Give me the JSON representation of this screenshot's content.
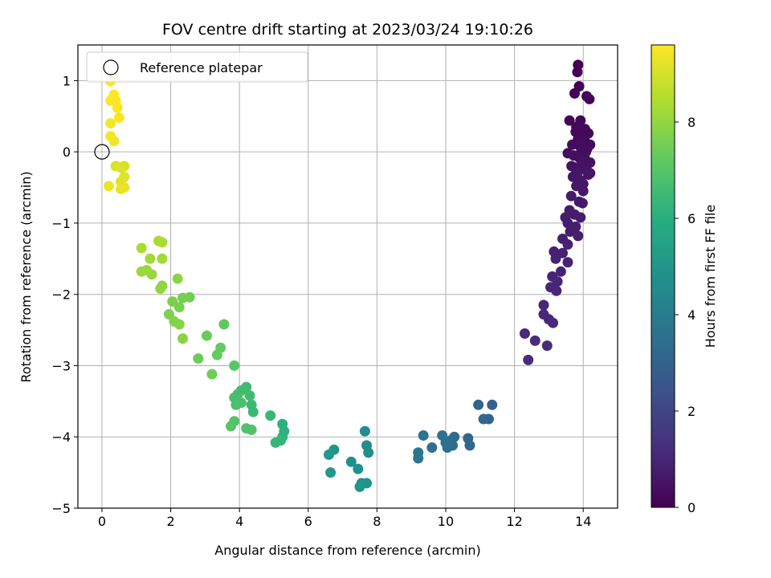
{
  "chart_data": {
    "type": "scatter",
    "title": "FOV centre drift starting at 2023/03/24 19:10:26",
    "xlabel": "Angular distance from reference (arcmin)",
    "ylabel": "Rotation from reference (arcmin)",
    "xlim": [
      -0.7,
      15.0
    ],
    "ylim": [
      -5.0,
      1.5
    ],
    "xticks": [
      0,
      2,
      4,
      6,
      8,
      10,
      12,
      14
    ],
    "yticks": [
      -5,
      -4,
      -3,
      -2,
      -1,
      0,
      1
    ],
    "xtick_labels": [
      "0",
      "2",
      "4",
      "6",
      "8",
      "10",
      "12",
      "14"
    ],
    "ytick_labels": [
      "−5",
      "−4",
      "−3",
      "−2",
      "−1",
      "0",
      "1"
    ],
    "grid": true,
    "legend": {
      "placement": "upper-left",
      "entries": [
        "Reference platepar"
      ]
    },
    "reference_point": {
      "x": 0,
      "y": 0
    },
    "colorbar": {
      "label": "Hours from first FF file",
      "range": [
        0,
        9.6
      ],
      "ticks": [
        0,
        2,
        4,
        6,
        8
      ],
      "tick_labels": [
        "0",
        "2",
        "4",
        "6",
        "8"
      ],
      "colormap": "viridis"
    },
    "points": [
      [
        13.85,
        1.22,
        0.02
      ],
      [
        13.83,
        1.12,
        0.04
      ],
      [
        13.88,
        0.92,
        0.06
      ],
      [
        13.75,
        0.82,
        0.08
      ],
      [
        14.1,
        0.78,
        0.1
      ],
      [
        14.18,
        0.74,
        0.12
      ],
      [
        13.6,
        0.44,
        0.14
      ],
      [
        13.92,
        0.44,
        0.16
      ],
      [
        13.8,
        0.35,
        0.18
      ],
      [
        14.05,
        0.32,
        0.2
      ],
      [
        14.15,
        0.26,
        0.22
      ],
      [
        13.95,
        0.22,
        0.24
      ],
      [
        13.85,
        0.18,
        0.26
      ],
      [
        14.05,
        0.15,
        0.28
      ],
      [
        14.2,
        0.1,
        0.3
      ],
      [
        13.9,
        0.08,
        0.32
      ],
      [
        14.12,
        0.05,
        0.34
      ],
      [
        13.95,
        0.02,
        0.36
      ],
      [
        13.55,
        -0.02,
        0.38
      ],
      [
        13.72,
        -0.05,
        0.4
      ],
      [
        13.88,
        -0.08,
        0.42
      ],
      [
        14.05,
        -0.1,
        0.44
      ],
      [
        14.2,
        -0.15,
        0.46
      ],
      [
        13.95,
        -0.18,
        0.48
      ],
      [
        13.75,
        -0.22,
        0.5
      ],
      [
        14.1,
        -0.25,
        0.52
      ],
      [
        13.85,
        -0.28,
        0.54
      ],
      [
        14.15,
        -0.32,
        0.56
      ],
      [
        13.7,
        -0.35,
        0.58
      ],
      [
        13.92,
        -0.4,
        0.6
      ],
      [
        13.8,
        -0.48,
        0.62
      ],
      [
        14.0,
        -0.55,
        0.64
      ],
      [
        13.65,
        -0.62,
        0.66
      ],
      [
        13.88,
        -0.7,
        0.68
      ],
      [
        13.6,
        -0.82,
        0.7
      ],
      [
        13.75,
        -0.88,
        0.72
      ],
      [
        13.92,
        -0.92,
        0.74
      ],
      [
        13.55,
        -1.0,
        0.76
      ],
      [
        13.78,
        -1.05,
        0.78
      ],
      [
        13.62,
        -1.12,
        0.8
      ],
      [
        13.85,
        -1.18,
        0.82
      ],
      [
        13.4,
        -1.22,
        0.84
      ],
      [
        13.55,
        -1.3,
        0.86
      ],
      [
        13.15,
        -1.4,
        0.88
      ],
      [
        13.4,
        -1.42,
        0.9
      ],
      [
        13.2,
        -1.5,
        0.92
      ],
      [
        13.55,
        -1.55,
        0.94
      ],
      [
        13.35,
        -1.68,
        0.96
      ],
      [
        13.1,
        -1.75,
        0.98
      ],
      [
        13.25,
        -1.82,
        1.0
      ],
      [
        13.05,
        -1.9,
        1.02
      ],
      [
        13.22,
        -1.95,
        1.04
      ],
      [
        12.85,
        -2.15,
        1.06
      ],
      [
        12.85,
        -2.28,
        1.08
      ],
      [
        13.0,
        -2.35,
        1.1
      ],
      [
        13.12,
        -2.4,
        1.12
      ],
      [
        12.3,
        -2.55,
        1.14
      ],
      [
        12.6,
        -2.65,
        1.16
      ],
      [
        12.95,
        -2.72,
        1.18
      ],
      [
        12.4,
        -2.92,
        1.2
      ],
      [
        13.95,
        0.3,
        0.22
      ],
      [
        14.08,
        0.0,
        0.36
      ],
      [
        14.2,
        -0.3,
        0.54
      ],
      [
        13.68,
        0.1,
        0.3
      ],
      [
        13.78,
        0.28,
        0.2
      ],
      [
        14.0,
        -0.45,
        0.6
      ],
      [
        13.48,
        -0.92,
        0.74
      ],
      [
        13.66,
        -0.2,
        0.46
      ],
      [
        13.98,
        -0.72,
        0.68
      ],
      [
        11.35,
        -3.55,
        3.0
      ],
      [
        10.95,
        -3.55,
        3.05
      ],
      [
        11.25,
        -3.75,
        3.1
      ],
      [
        11.1,
        -3.75,
        3.15
      ],
      [
        10.65,
        -4.02,
        3.2
      ],
      [
        10.7,
        -4.12,
        3.25
      ],
      [
        10.25,
        -4.0,
        3.3
      ],
      [
        10.15,
        -4.05,
        3.35
      ],
      [
        10.2,
        -4.12,
        3.4
      ],
      [
        10.0,
        -4.08,
        3.45
      ],
      [
        10.05,
        -4.15,
        3.5
      ],
      [
        9.9,
        -3.98,
        3.55
      ],
      [
        9.6,
        -4.15,
        3.6
      ],
      [
        9.35,
        -3.98,
        3.65
      ],
      [
        9.2,
        -4.22,
        3.7
      ],
      [
        9.2,
        -4.3,
        3.75
      ],
      [
        7.65,
        -3.92,
        4.6
      ],
      [
        7.7,
        -4.12,
        4.65
      ],
      [
        7.75,
        -4.22,
        4.7
      ],
      [
        7.45,
        -4.45,
        4.75
      ],
      [
        7.25,
        -4.35,
        4.8
      ],
      [
        7.55,
        -4.65,
        4.85
      ],
      [
        7.7,
        -4.65,
        4.9
      ],
      [
        7.5,
        -4.7,
        4.95
      ],
      [
        6.75,
        -4.18,
        5.0
      ],
      [
        6.6,
        -4.25,
        5.05
      ],
      [
        6.65,
        -4.5,
        5.1
      ],
      [
        5.25,
        -3.82,
        6.1
      ],
      [
        5.3,
        -3.92,
        6.15
      ],
      [
        5.25,
        -4.0,
        6.2
      ],
      [
        5.2,
        -4.05,
        6.25
      ],
      [
        5.05,
        -4.08,
        6.3
      ],
      [
        4.9,
        -3.7,
        6.35
      ],
      [
        4.35,
        -3.55,
        6.4
      ],
      [
        4.4,
        -3.65,
        6.45
      ],
      [
        4.2,
        -3.3,
        6.5
      ],
      [
        4.3,
        -3.42,
        6.55
      ],
      [
        4.05,
        -3.35,
        6.6
      ],
      [
        3.95,
        -3.4,
        6.65
      ],
      [
        3.85,
        -3.45,
        6.7
      ],
      [
        4.05,
        -3.52,
        6.75
      ],
      [
        3.9,
        -3.55,
        6.8
      ],
      [
        4.2,
        -3.88,
        6.85
      ],
      [
        4.35,
        -3.9,
        6.9
      ],
      [
        3.85,
        -3.78,
        6.95
      ],
      [
        3.75,
        -3.85,
        7.0
      ],
      [
        3.85,
        -3.0,
        7.05
      ],
      [
        3.55,
        -2.42,
        7.2
      ],
      [
        3.45,
        -2.75,
        7.25
      ],
      [
        3.35,
        -2.85,
        7.3
      ],
      [
        3.05,
        -2.58,
        7.35
      ],
      [
        2.8,
        -2.9,
        7.4
      ],
      [
        3.2,
        -3.12,
        7.45
      ],
      [
        2.55,
        -2.04,
        7.5
      ],
      [
        2.35,
        -2.05,
        7.55
      ],
      [
        2.25,
        -2.18,
        7.6
      ],
      [
        2.05,
        -2.1,
        7.65
      ],
      [
        1.95,
        -2.28,
        7.7
      ],
      [
        2.1,
        -2.38,
        7.75
      ],
      [
        2.25,
        -2.42,
        7.8
      ],
      [
        2.35,
        -2.62,
        7.85
      ],
      [
        2.2,
        -1.78,
        7.9
      ],
      [
        1.75,
        -1.88,
        7.95
      ],
      [
        1.7,
        -1.92,
        8.0
      ],
      [
        1.45,
        -1.72,
        8.05
      ],
      [
        1.3,
        -1.66,
        8.1
      ],
      [
        1.15,
        -1.68,
        8.15
      ],
      [
        1.4,
        -1.5,
        8.2
      ],
      [
        1.75,
        -1.5,
        8.25
      ],
      [
        1.65,
        -1.25,
        8.3
      ],
      [
        1.75,
        -1.27,
        8.35
      ],
      [
        1.15,
        -1.35,
        8.4
      ],
      [
        0.65,
        -0.2,
        9.0
      ],
      [
        0.4,
        -0.2,
        9.05
      ],
      [
        0.55,
        -0.22,
        9.1
      ],
      [
        0.65,
        -0.35,
        9.15
      ],
      [
        0.55,
        -0.42,
        9.2
      ],
      [
        0.65,
        -0.5,
        9.25
      ],
      [
        0.55,
        -0.52,
        9.3
      ],
      [
        0.2,
        -0.48,
        9.35
      ],
      [
        0.35,
        0.15,
        9.4
      ],
      [
        0.25,
        0.22,
        9.45
      ],
      [
        0.25,
        0.4,
        9.5
      ],
      [
        0.5,
        0.48,
        9.52
      ],
      [
        0.45,
        0.62,
        9.54
      ],
      [
        0.25,
        0.72,
        9.56
      ],
      [
        0.4,
        0.72,
        9.58
      ],
      [
        0.35,
        0.8,
        9.6
      ],
      [
        0.25,
        0.99,
        9.6
      ]
    ]
  }
}
